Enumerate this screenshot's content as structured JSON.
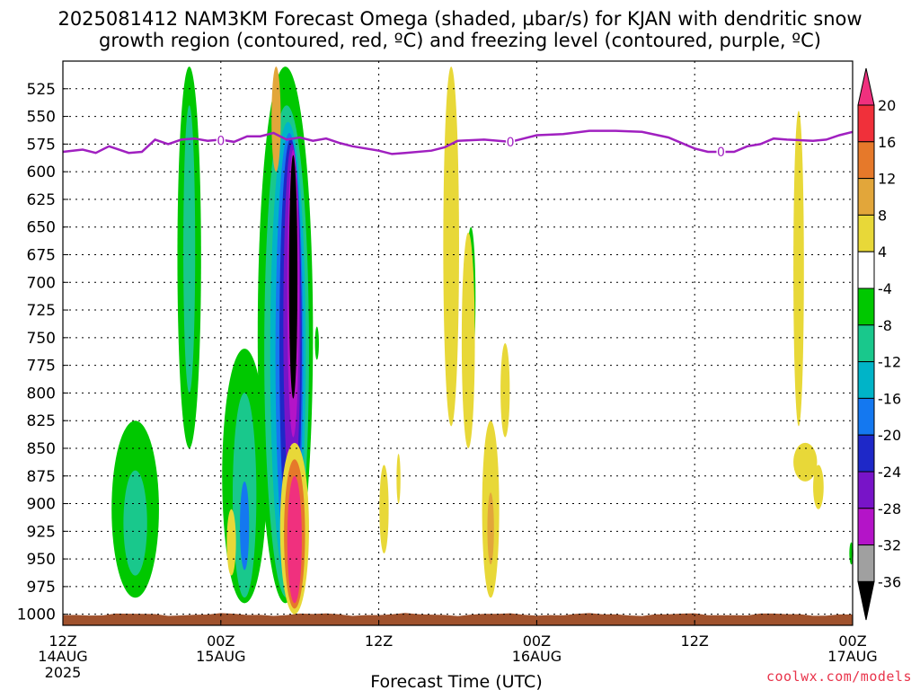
{
  "chart_data": {
    "type": "heatmap",
    "title_line1": "2025081412 NAM3KM Forecast Omega (shaded, µbar/s) for KJAN with dendritic snow",
    "title_line2": "growth region (contoured, red, ºC) and freezing level (contoured, purple, ºC)",
    "xlabel": "Forecast Time (UTC)",
    "x_ticks": [
      {
        "label": "12Z",
        "date": "14AUG",
        "year": "2025",
        "hour": 0
      },
      {
        "label": "00Z",
        "date": "15AUG",
        "year": "",
        "hour": 12
      },
      {
        "label": "12Z",
        "date": "",
        "year": "",
        "hour": 24
      },
      {
        "label": "00Z",
        "date": "16AUG",
        "year": "",
        "hour": 36
      },
      {
        "label": "12Z",
        "date": "",
        "year": "",
        "hour": 48
      },
      {
        "label": "00Z",
        "date": "17AUG",
        "year": "",
        "hour": 60
      }
    ],
    "x_range_hours": [
      0,
      60
    ],
    "y_ticks": [
      "525",
      "550",
      "575",
      "600",
      "625",
      "650",
      "675",
      "700",
      "725",
      "750",
      "775",
      "800",
      "825",
      "850",
      "875",
      "900",
      "925",
      "950",
      "975",
      "1000"
    ],
    "y_range_hPa": [
      500,
      1010
    ],
    "grid": true,
    "colorbar": {
      "labels": [
        "20",
        "16",
        "12",
        "8",
        "4",
        "-4",
        "-8",
        "-12",
        "-16",
        "-20",
        "-24",
        "-28",
        "-32",
        "-36"
      ],
      "colors": [
        "#f0307e",
        "#f0303a",
        "#e6792a",
        "#e2a63a",
        "#e8d838",
        "#ffffff",
        "#00c800",
        "#19c88c",
        "#00b4c8",
        "#1478f0",
        "#1e28c8",
        "#7814c8",
        "#b414c8",
        "#a0a0a0"
      ]
    },
    "freezing_level": {
      "label": "0",
      "color": "#a020c0",
      "points": [
        {
          "h": 0,
          "p": 582
        },
        {
          "h": 1.5,
          "p": 580
        },
        {
          "h": 2.5,
          "p": 583
        },
        {
          "h": 3.5,
          "p": 577
        },
        {
          "h": 5,
          "p": 583
        },
        {
          "h": 6,
          "p": 582
        },
        {
          "h": 7,
          "p": 571
        },
        {
          "h": 8,
          "p": 575
        },
        {
          "h": 9,
          "p": 571
        },
        {
          "h": 10,
          "p": 570
        },
        {
          "h": 11,
          "p": 572
        },
        {
          "h": 12,
          "p": 571
        },
        {
          "h": 13,
          "p": 573
        },
        {
          "h": 14,
          "p": 568
        },
        {
          "h": 15,
          "p": 568
        },
        {
          "h": 16,
          "p": 565
        },
        {
          "h": 17,
          "p": 571
        },
        {
          "h": 18,
          "p": 569
        },
        {
          "h": 19,
          "p": 572
        },
        {
          "h": 20,
          "p": 570
        },
        {
          "h": 21,
          "p": 574
        },
        {
          "h": 22,
          "p": 577
        },
        {
          "h": 24,
          "p": 581
        },
        {
          "h": 25,
          "p": 584
        },
        {
          "h": 26,
          "p": 583
        },
        {
          "h": 28,
          "p": 581
        },
        {
          "h": 29,
          "p": 578
        },
        {
          "h": 30,
          "p": 572
        },
        {
          "h": 32,
          "p": 571
        },
        {
          "h": 34,
          "p": 573
        },
        {
          "h": 36,
          "p": 567
        },
        {
          "h": 38,
          "p": 566
        },
        {
          "h": 40,
          "p": 563
        },
        {
          "h": 42,
          "p": 563
        },
        {
          "h": 44,
          "p": 564
        },
        {
          "h": 46,
          "p": 569
        },
        {
          "h": 48,
          "p": 579
        },
        {
          "h": 49,
          "p": 582
        },
        {
          "h": 50,
          "p": 582
        },
        {
          "h": 51,
          "p": 582
        },
        {
          "h": 52,
          "p": 577
        },
        {
          "h": 53,
          "p": 575
        },
        {
          "h": 54,
          "p": 570
        },
        {
          "h": 55,
          "p": 571
        },
        {
          "h": 57,
          "p": 572
        },
        {
          "h": 58,
          "p": 571
        },
        {
          "h": 59,
          "p": 567
        },
        {
          "h": 60,
          "p": 564
        }
      ],
      "label_positions": [
        {
          "h": 12,
          "p": 572
        },
        {
          "h": 34,
          "p": 573
        },
        {
          "h": 50,
          "p": 582
        }
      ]
    },
    "omega_blobs": [
      {
        "label": "green column",
        "h": 9.6,
        "h_half": 0.9,
        "p_top": 505,
        "p_bottom": 850,
        "fill": "#00c800"
      },
      {
        "label": "teal column",
        "h": 9.6,
        "h_half": 0.45,
        "p_top": 540,
        "p_bottom": 800,
        "fill": "#19c88c"
      },
      {
        "label": "lower left green",
        "h": 5.5,
        "h_half": 1.8,
        "p_top": 825,
        "p_bottom": 985,
        "fill": "#00c800"
      },
      {
        "label": "lower left teal",
        "h": 5.5,
        "h_half": 0.9,
        "p_top": 870,
        "p_bottom": 965,
        "fill": "#19c88c"
      },
      {
        "label": "pre-dawn green",
        "h": 13.8,
        "h_half": 1.7,
        "p_top": 760,
        "p_bottom": 990,
        "fill": "#00c800"
      },
      {
        "label": "pre-dawn teal",
        "h": 13.8,
        "h_half": 0.9,
        "p_top": 800,
        "p_bottom": 985,
        "fill": "#19c88c"
      },
      {
        "label": "pre-dawn blue",
        "h": 13.8,
        "h_half": 0.35,
        "p_top": 880,
        "p_bottom": 960,
        "fill": "#1478f0"
      },
      {
        "label": "main green",
        "h": 16.9,
        "h_half": 2.1,
        "p_top": 505,
        "p_bottom": 990,
        "fill": "#00c800"
      },
      {
        "label": "main teal",
        "h": 17.0,
        "h_half": 1.7,
        "p_top": 540,
        "p_bottom": 985,
        "fill": "#19c88c"
      },
      {
        "label": "main cyan",
        "h": 17.1,
        "h_half": 1.35,
        "p_top": 555,
        "p_bottom": 975,
        "fill": "#00b4c8"
      },
      {
        "label": "main blue",
        "h": 17.2,
        "h_half": 1.05,
        "p_top": 565,
        "p_bottom": 965,
        "fill": "#1478f0"
      },
      {
        "label": "main navy",
        "h": 17.3,
        "h_half": 0.85,
        "p_top": 570,
        "p_bottom": 945,
        "fill": "#1e28c8"
      },
      {
        "label": "main violet",
        "h": 17.4,
        "h_half": 0.65,
        "p_top": 575,
        "p_bottom": 900,
        "fill": "#7814c8"
      },
      {
        "label": "main magenta",
        "h": 17.5,
        "h_half": 0.45,
        "p_top": 580,
        "p_bottom": 840,
        "fill": "#b414c8"
      },
      {
        "label": "main core",
        "h": 17.5,
        "h_half": 0.32,
        "p_top": 585,
        "p_bottom": 805,
        "fill": "#000000"
      },
      {
        "label": "rising orange upper",
        "h": 16.2,
        "h_half": 0.35,
        "p_top": 505,
        "p_bottom": 600,
        "fill": "#e2a63a"
      },
      {
        "label": "sinking yellow",
        "h": 17.6,
        "h_half": 1.1,
        "p_top": 845,
        "p_bottom": 1000,
        "fill": "#e8d838"
      },
      {
        "label": "sinking orange",
        "h": 17.6,
        "h_half": 0.8,
        "p_top": 860,
        "p_bottom": 995,
        "fill": "#e6792a"
      },
      {
        "label": "sinking pink",
        "h": 17.6,
        "h_half": 0.55,
        "p_top": 875,
        "p_bottom": 990,
        "fill": "#f0307e"
      },
      {
        "label": "small yellow 925",
        "h": 12.8,
        "h_half": 0.35,
        "p_top": 905,
        "p_bottom": 965,
        "fill": "#e8d838"
      },
      {
        "label": "small green 750",
        "h": 19.3,
        "h_half": 0.15,
        "p_top": 740,
        "p_bottom": 770,
        "fill": "#00c800"
      },
      {
        "label": "midday yellow 1",
        "h": 24.4,
        "h_half": 0.35,
        "p_top": 865,
        "p_bottom": 945,
        "fill": "#e8d838"
      },
      {
        "label": "midday yellow 2",
        "h": 25.5,
        "h_half": 0.15,
        "p_top": 855,
        "p_bottom": 900,
        "fill": "#e8d838"
      },
      {
        "label": "afternoon yellow column",
        "h": 29.5,
        "h_half": 0.6,
        "p_top": 505,
        "p_bottom": 830,
        "fill": "#e8d838"
      },
      {
        "label": "afternoon green",
        "h": 31.0,
        "h_half": 0.35,
        "p_top": 650,
        "p_bottom": 780,
        "fill": "#00c800"
      },
      {
        "label": "afternoon yellow 2",
        "h": 30.8,
        "h_half": 0.5,
        "p_top": 655,
        "p_bottom": 850,
        "fill": "#e8d838"
      },
      {
        "label": "afternoon yellow lower",
        "h": 32.5,
        "h_half": 0.65,
        "p_top": 825,
        "p_bottom": 985,
        "fill": "#e8d838"
      },
      {
        "label": "afternoon orange lower",
        "h": 32.5,
        "h_half": 0.25,
        "p_top": 890,
        "p_bottom": 955,
        "fill": "#e2a63a"
      },
      {
        "label": "yellow 800",
        "h": 33.6,
        "h_half": 0.35,
        "p_top": 755,
        "p_bottom": 840,
        "fill": "#e8d838"
      },
      {
        "label": "right yellow column",
        "h": 55.9,
        "h_half": 0.4,
        "p_top": 545,
        "p_bottom": 830,
        "fill": "#e8d838"
      },
      {
        "label": "right yellow lower 1",
        "h": 56.4,
        "h_half": 0.9,
        "p_top": 845,
        "p_bottom": 880,
        "fill": "#e8d838"
      },
      {
        "label": "right yellow lower 2",
        "h": 57.4,
        "h_half": 0.4,
        "p_top": 865,
        "p_bottom": 905,
        "fill": "#e8d838"
      },
      {
        "label": "edge green",
        "h": 59.9,
        "h_half": 0.15,
        "p_top": 935,
        "p_bottom": 955,
        "fill": "#00c800"
      }
    ],
    "ground_color": "#a0522d"
  },
  "credit": "coolwx.com/models"
}
